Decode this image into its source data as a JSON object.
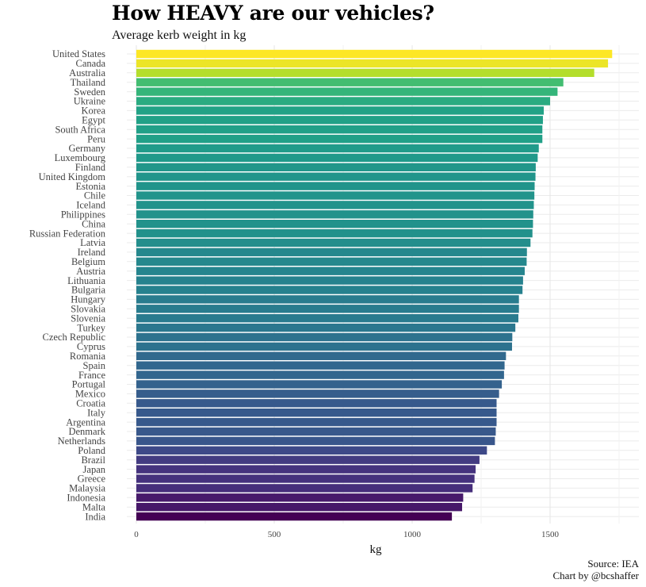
{
  "chart_data": {
    "type": "bar",
    "orientation": "horizontal",
    "title": "How HEAVY are our vehicles?",
    "subtitle": "Average kerb weight in kg",
    "xlabel": "kg",
    "ylabel": "",
    "xlim": [
      0,
      1750
    ],
    "xticks": [
      0,
      500,
      1000,
      1500
    ],
    "grid": true,
    "color_scale": "viridis",
    "categories": [
      "United States",
      "Canada",
      "Australia",
      "Thailand",
      "Sweden",
      "Ukraine",
      "Korea",
      "Egypt",
      "South Africa",
      "Peru",
      "Germany",
      "Luxembourg",
      "Finland",
      "United Kingdom",
      "Estonia",
      "Chile",
      "Iceland",
      "Philippines",
      "China",
      "Russian Federation",
      "Latvia",
      "Ireland",
      "Belgium",
      "Austria",
      "Lithuania",
      "Bulgaria",
      "Hungary",
      "Slovakia",
      "Slovenia",
      "Turkey",
      "Czech Republic",
      "Cyprus",
      "Romania",
      "Spain",
      "France",
      "Portugal",
      "Mexico",
      "Croatia",
      "Italy",
      "Argentina",
      "Denmark",
      "Netherlands",
      "Poland",
      "Brazil",
      "Japan",
      "Greece",
      "Malaysia",
      "Indonesia",
      "Malta",
      "India"
    ],
    "values": [
      1725,
      1710,
      1660,
      1548,
      1527,
      1500,
      1477,
      1474,
      1472,
      1472,
      1459,
      1455,
      1448,
      1447,
      1444,
      1443,
      1441,
      1439,
      1438,
      1436,
      1429,
      1416,
      1415,
      1408,
      1402,
      1400,
      1387,
      1387,
      1385,
      1374,
      1363,
      1362,
      1340,
      1335,
      1333,
      1325,
      1315,
      1306,
      1306,
      1306,
      1303,
      1300,
      1271,
      1244,
      1230,
      1226,
      1219,
      1185,
      1181,
      1144
    ]
  },
  "caption": {
    "source": "Source: IEA",
    "credit": "Chart by @bcshaffer"
  }
}
